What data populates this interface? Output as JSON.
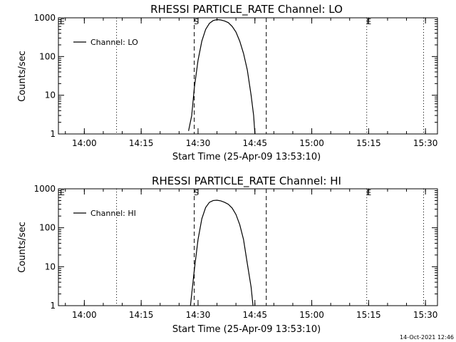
{
  "chart_data": [
    {
      "type": "line",
      "title": "RHESSI PARTICLE_RATE Channel: LO",
      "xlabel": "Start Time (25-Apr-09 13:53:10)",
      "ylabel": "Counts/sec",
      "yscale": "log",
      "ylim": [
        1,
        1000
      ],
      "xlim_minutes_after_start": [
        0,
        100
      ],
      "x_ticks": [
        "14:00",
        "14:15",
        "14:30",
        "14:45",
        "15:00",
        "15:15",
        "15:30"
      ],
      "y_ticks": [
        "1",
        "10",
        "100",
        "1000"
      ],
      "legend": {
        "position": "top-left",
        "entries": [
          "Channel: LO"
        ]
      },
      "markers": {
        "start_label": "S",
        "end_label": "E",
        "corner_label": "E"
      },
      "series": [
        {
          "name": "Channel: LO",
          "points": [
            [
              "14:27:30",
              1.2
            ],
            [
              "14:28:20",
              3
            ],
            [
              "14:29:00",
              15
            ],
            [
              "14:30:00",
              80
            ],
            [
              "14:31:00",
              250
            ],
            [
              "14:32:00",
              500
            ],
            [
              "14:33:00",
              720
            ],
            [
              "14:34:00",
              850
            ],
            [
              "14:35:00",
              900
            ],
            [
              "14:36:00",
              880
            ],
            [
              "14:37:00",
              830
            ],
            [
              "14:38:00",
              750
            ],
            [
              "14:39:00",
              600
            ],
            [
              "14:40:00",
              430
            ],
            [
              "14:41:00",
              250
            ],
            [
              "14:42:00",
              120
            ],
            [
              "14:43:00",
              45
            ],
            [
              "14:44:00",
              10
            ],
            [
              "14:44:40",
              3
            ],
            [
              "14:45:00",
              1
            ]
          ]
        }
      ]
    },
    {
      "type": "line",
      "title": "RHESSI PARTICLE_RATE Channel: HI",
      "xlabel": "Start Time (25-Apr-09 13:53:10)",
      "ylabel": "Counts/sec",
      "yscale": "log",
      "ylim": [
        1,
        1000
      ],
      "xlim_minutes_after_start": [
        0,
        100
      ],
      "x_ticks": [
        "14:00",
        "14:15",
        "14:30",
        "14:45",
        "15:00",
        "15:15",
        "15:30"
      ],
      "y_ticks": [
        "1",
        "10",
        "100",
        "1000"
      ],
      "legend": {
        "position": "top-left",
        "entries": [
          "Channel: HI"
        ]
      },
      "markers": {
        "start_label": "S",
        "end_label": "E",
        "corner_label": "E"
      },
      "series": [
        {
          "name": "Channel: HI",
          "points": [
            [
              "14:28:00",
              1
            ],
            [
              "14:29:00",
              8
            ],
            [
              "14:30:00",
              50
            ],
            [
              "14:31:00",
              170
            ],
            [
              "14:32:00",
              330
            ],
            [
              "14:33:00",
              450
            ],
            [
              "14:34:00",
              500
            ],
            [
              "14:35:00",
              510
            ],
            [
              "14:36:00",
              490
            ],
            [
              "14:37:00",
              450
            ],
            [
              "14:38:00",
              400
            ],
            [
              "14:39:00",
              320
            ],
            [
              "14:40:00",
              220
            ],
            [
              "14:41:00",
              120
            ],
            [
              "14:42:00",
              50
            ],
            [
              "14:43:00",
              12
            ],
            [
              "14:44:00",
              3
            ],
            [
              "14:44:30",
              1
            ]
          ]
        }
      ]
    }
  ],
  "event_lines": {
    "dashed": [
      "14:29:00",
      "14:48:00"
    ],
    "dotted": [
      "14:08:30",
      "15:14:30",
      "15:29:30"
    ]
  },
  "footer": {
    "timestamp": "14-Oct-2021 12:46"
  }
}
